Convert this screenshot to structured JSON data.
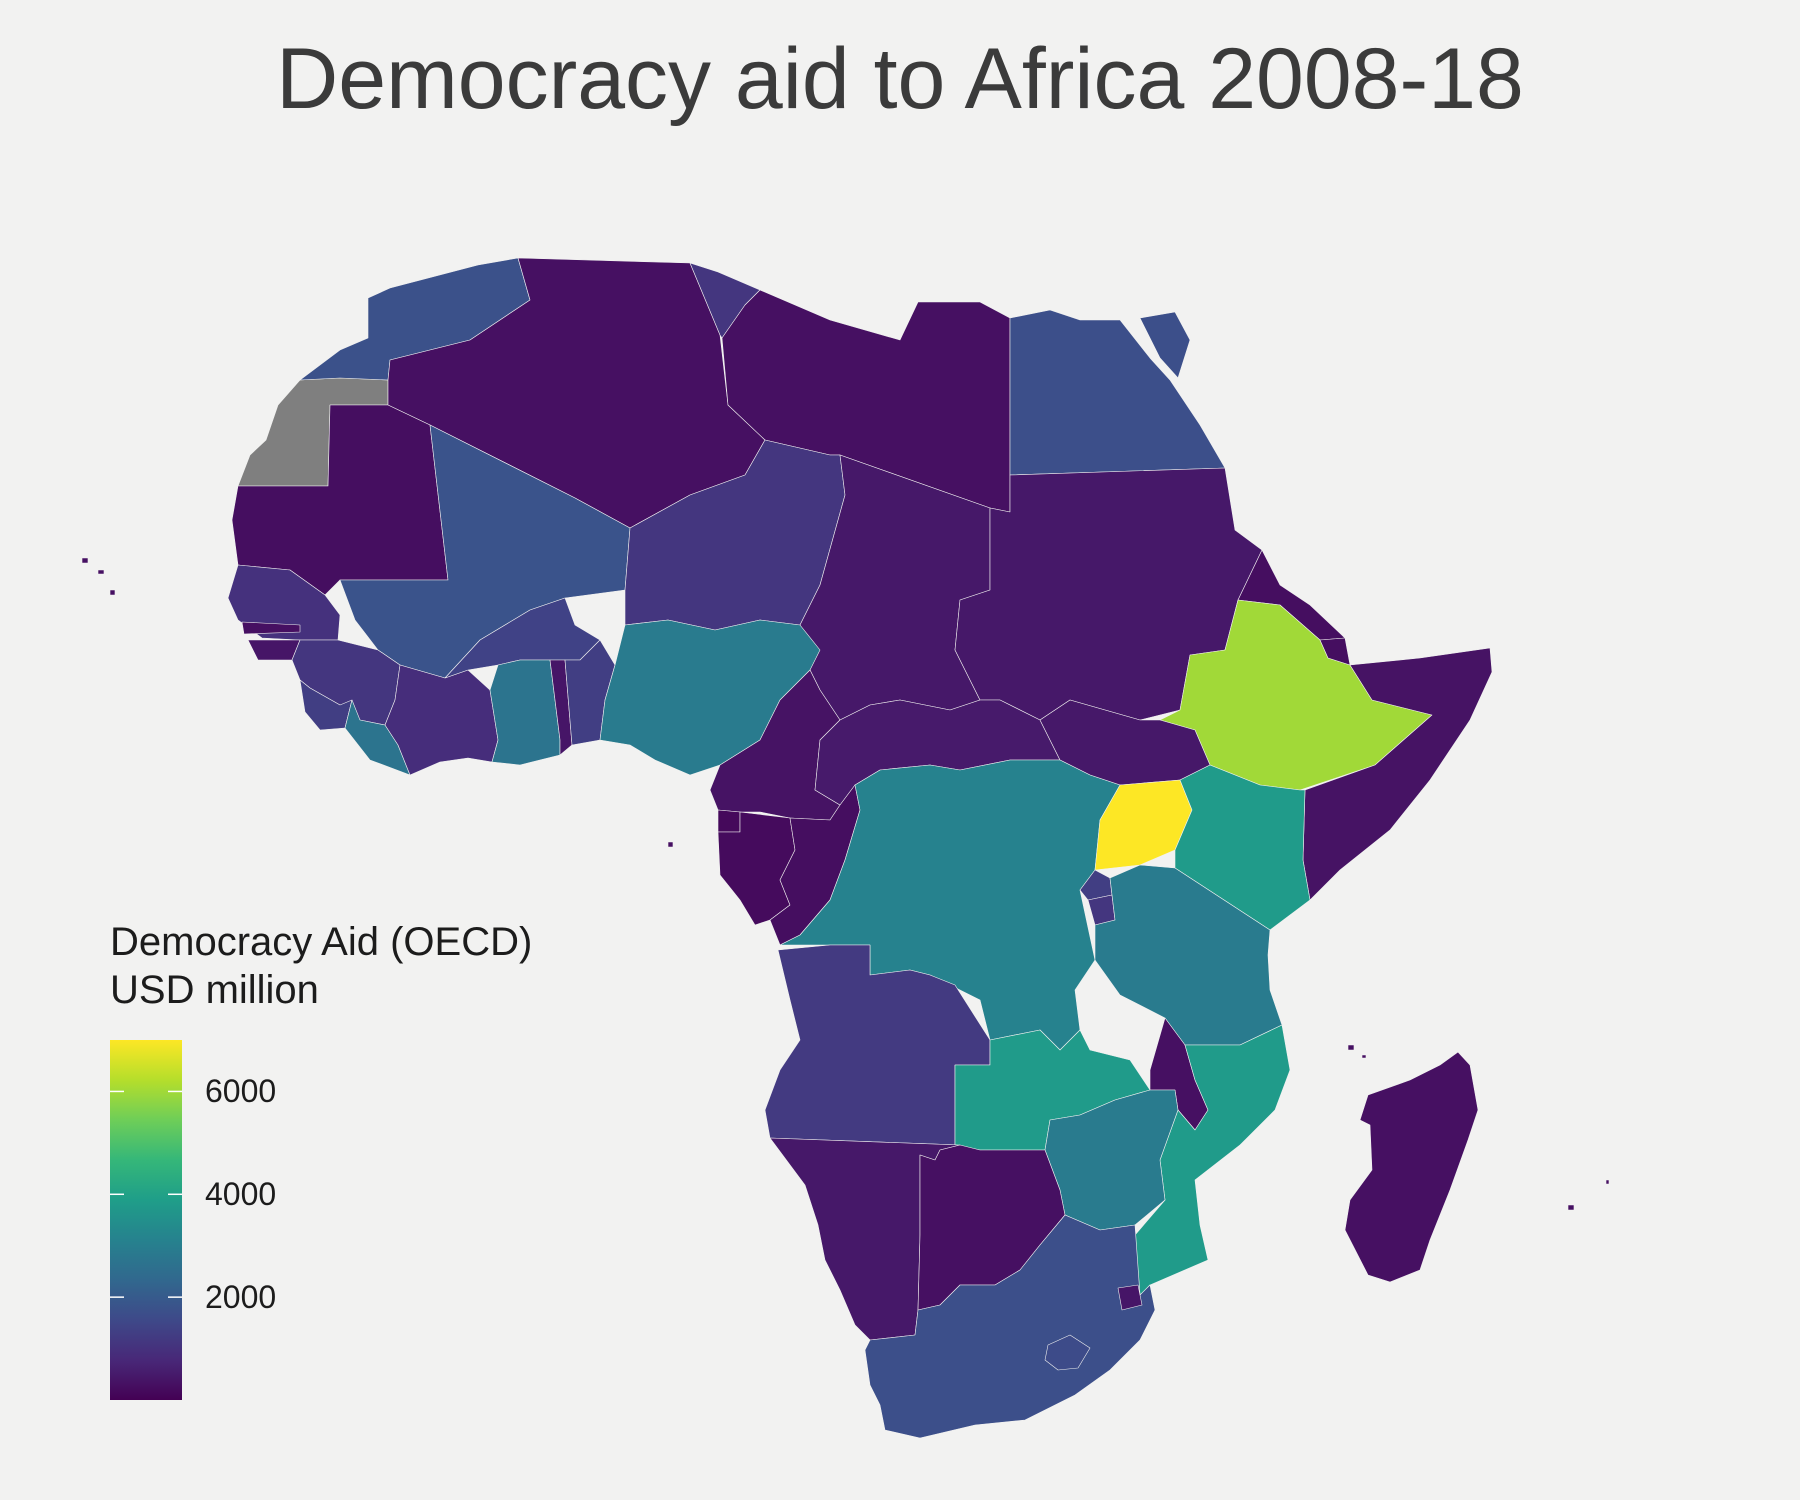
{
  "title": "Democracy aid to Africa 2008-18",
  "legend": {
    "title_line1": "Democracy Aid (OECD)",
    "title_line2": "USD million",
    "min": 0,
    "max": 7000,
    "ticks": [
      2000,
      4000,
      6000
    ],
    "tick_labels": [
      "2000",
      "4000",
      "6000"
    ],
    "color_stops": [
      "#440154",
      "#482878",
      "#3e4989",
      "#31688e",
      "#26828e",
      "#1f9e89",
      "#35b779",
      "#6ece58",
      "#b5de2b",
      "#fde725"
    ]
  },
  "colors": {
    "background": "#f2f2f1",
    "no_data": "#7f7f7f",
    "sea_ocean": "#f2f2f1"
  },
  "regions": [
    {
      "name": "Western Sahara",
      "value": null
    },
    {
      "name": "Morocco",
      "value": 1750
    },
    {
      "name": "Algeria",
      "value": 300
    },
    {
      "name": "Tunisia",
      "value": 1100
    },
    {
      "name": "Libya",
      "value": 300
    },
    {
      "name": "Egypt",
      "value": 1700
    },
    {
      "name": "Mauritania",
      "value": 250
    },
    {
      "name": "Mali",
      "value": 1800
    },
    {
      "name": "Niger",
      "value": 1100
    },
    {
      "name": "Chad",
      "value": 450
    },
    {
      "name": "Sudan",
      "value": 450
    },
    {
      "name": "Senegal",
      "value": 1000
    },
    {
      "name": "Gambia",
      "value": 300
    },
    {
      "name": "Guinea-Bissau",
      "value": 400
    },
    {
      "name": "Guinea",
      "value": 1100
    },
    {
      "name": "Sierra Leone",
      "value": 1300
    },
    {
      "name": "Liberia",
      "value": 2700
    },
    {
      "name": "Cote d'Ivoire",
      "value": 900
    },
    {
      "name": "Burkina Faso",
      "value": 1400
    },
    {
      "name": "Ghana",
      "value": 2700
    },
    {
      "name": "Togo",
      "value": 400
    },
    {
      "name": "Benin",
      "value": 1300
    },
    {
      "name": "Nigeria",
      "value": 2900
    },
    {
      "name": "Cameroon",
      "value": 350
    },
    {
      "name": "Central African Republic",
      "value": 500
    },
    {
      "name": "South Sudan",
      "value": 450
    },
    {
      "name": "Eritrea",
      "value": 250
    },
    {
      "name": "Ethiopia",
      "value": 6000
    },
    {
      "name": "Djibouti",
      "value": 250
    },
    {
      "name": "Somalia",
      "value": 350
    },
    {
      "name": "Equatorial Guinea",
      "value": 150
    },
    {
      "name": "Gabon",
      "value": 200
    },
    {
      "name": "Republic of the Congo",
      "value": 250
    },
    {
      "name": "Democratic Republic of the Congo",
      "value": 3100
    },
    {
      "name": "Uganda",
      "value": 7000
    },
    {
      "name": "Kenya",
      "value": 3800
    },
    {
      "name": "Rwanda",
      "value": 1300
    },
    {
      "name": "Burundi",
      "value": 1100
    },
    {
      "name": "Tanzania",
      "value": 2900
    },
    {
      "name": "Angola",
      "value": 1200
    },
    {
      "name": "Zambia",
      "value": 3800
    },
    {
      "name": "Malawi",
      "value": 300
    },
    {
      "name": "Mozambique",
      "value": 3800
    },
    {
      "name": "Namibia",
      "value": 450
    },
    {
      "name": "Botswana",
      "value": 300
    },
    {
      "name": "Zimbabwe",
      "value": 2900
    },
    {
      "name": "South Africa",
      "value": 1700
    },
    {
      "name": "Lesotho",
      "value": 1600
    },
    {
      "name": "Eswatini",
      "value": 400
    },
    {
      "name": "Madagascar",
      "value": 300
    }
  ]
}
